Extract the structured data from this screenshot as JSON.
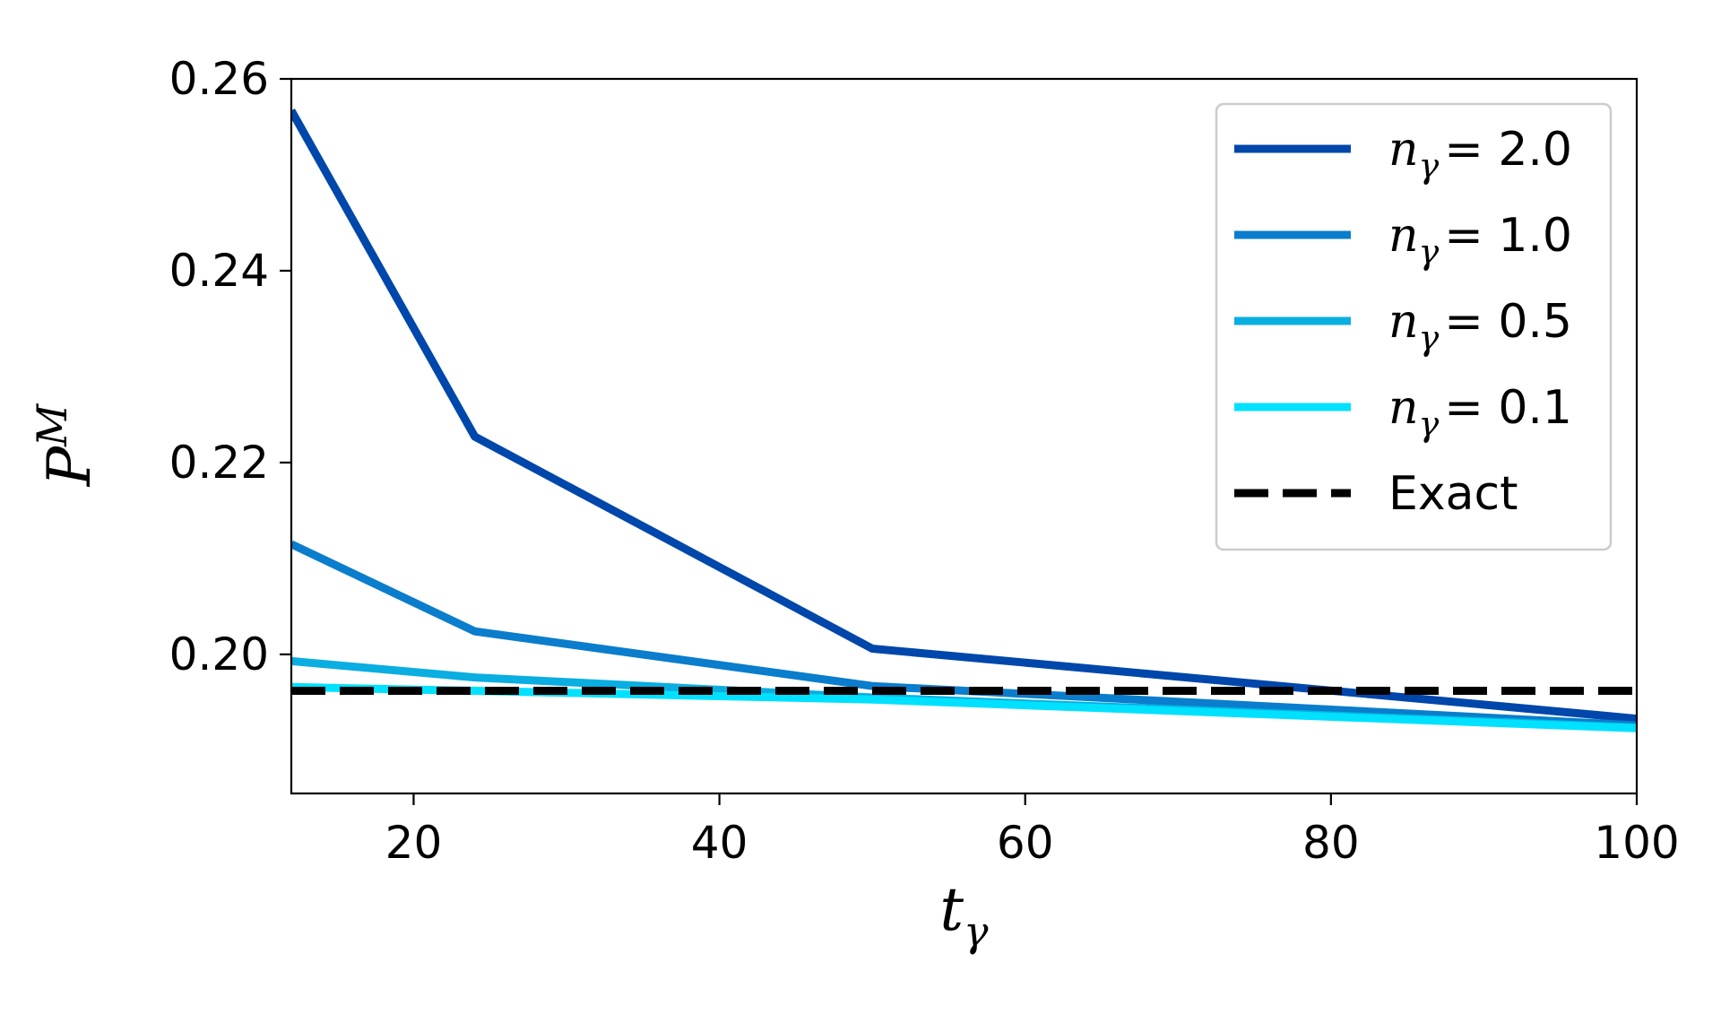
{
  "chart_data": {
    "type": "line",
    "xlabel": "t",
    "xlabel_sub": "γ",
    "ylabel": "P",
    "ylabel_sup": "M",
    "xlim": [
      12,
      100
    ],
    "ylim": [
      0.1855,
      0.26
    ],
    "xticks": [
      20,
      40,
      60,
      80,
      100
    ],
    "yticks": [
      0.2,
      0.22,
      0.24,
      0.26
    ],
    "xtick_labels": [
      "20",
      "40",
      "60",
      "80",
      "100"
    ],
    "ytick_labels": [
      "0.20",
      "0.22",
      "0.24",
      "0.26"
    ],
    "legend_position": "top-right",
    "grid": false,
    "series": [
      {
        "name_prefix": "n",
        "name_sub": "γ",
        "name_value": "= 2.0",
        "color": "#0047AB",
        "dash": "solid",
        "x": [
          12,
          24,
          50,
          100
        ],
        "y": [
          0.2567,
          0.2227,
          0.2006,
          0.1933
        ]
      },
      {
        "name_prefix": "n",
        "name_sub": "γ",
        "name_value": "= 1.0",
        "color": "#0A7DCC",
        "dash": "solid",
        "x": [
          12,
          24,
          50,
          100
        ],
        "y": [
          0.2115,
          0.2024,
          0.1967,
          0.1926
        ]
      },
      {
        "name_prefix": "n",
        "name_sub": "γ",
        "name_value": "= 0.5",
        "color": "#0AAEE0",
        "dash": "solid",
        "x": [
          12,
          24,
          50,
          100
        ],
        "y": [
          0.1993,
          0.1976,
          0.1955,
          0.1924
        ]
      },
      {
        "name_prefix": "n",
        "name_sub": "γ",
        "name_value": "= 0.1",
        "color": "#00E1FF",
        "dash": "solid",
        "x": [
          12,
          24,
          50,
          100
        ],
        "y": [
          0.1966,
          0.1962,
          0.1953,
          0.1923
        ]
      },
      {
        "name": "Exact",
        "color": "#000000",
        "dash": "dashed",
        "x": [
          12,
          100
        ],
        "y": [
          0.1962,
          0.1962
        ]
      }
    ]
  }
}
